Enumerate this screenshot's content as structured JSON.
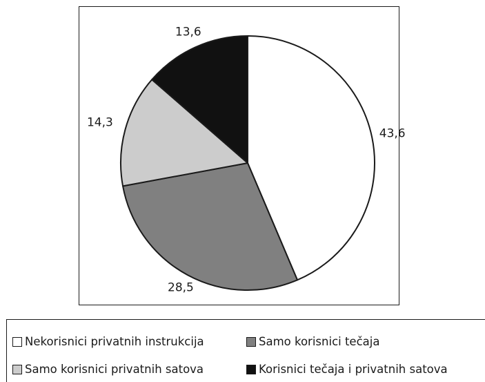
{
  "chart_data": {
    "type": "pie",
    "slices": [
      {
        "label": "Nekorisnici privatnih instrukcija",
        "value": 43.6,
        "value_label": "43,6",
        "color": "#ffffff"
      },
      {
        "label": "Samo korisnici tečaja",
        "value": 28.5,
        "value_label": "28,5",
        "color": "#808080"
      },
      {
        "label": "Samo korisnici privatnih satova",
        "value": 14.3,
        "value_label": "14,3",
        "color": "#cccccc"
      },
      {
        "label": "Korisnici tečaja i privatnih satova",
        "value": 13.6,
        "value_label": "13,6",
        "color": "#111111"
      }
    ],
    "start_angle": "12 o'clock",
    "direction": "clockwise",
    "legend_position": "bottom"
  }
}
